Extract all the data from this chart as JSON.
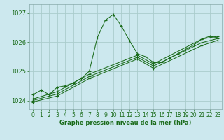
{
  "title": "Graphe pression niveau de la mer (hPa)",
  "bg_color": "#cce8ee",
  "grid_color": "#aacccc",
  "line_color": "#1a6b1a",
  "xlim": [
    -0.5,
    23.5
  ],
  "ylim": [
    1023.7,
    1027.3
  ],
  "yticks": [
    1024,
    1025,
    1026,
    1027
  ],
  "xticks": [
    0,
    1,
    2,
    3,
    4,
    5,
    6,
    7,
    8,
    9,
    10,
    11,
    12,
    13,
    14,
    15,
    16,
    17,
    18,
    19,
    20,
    21,
    22,
    23
  ],
  "series1": [
    1024.2,
    1024.35,
    1024.2,
    1024.45,
    1024.5,
    1024.6,
    1024.75,
    1025.0,
    1026.15,
    1026.75,
    1026.95,
    1026.55,
    1026.05,
    1025.6,
    1025.5,
    1025.3,
    1025.3,
    1025.45,
    1025.6,
    1025.75,
    1025.9,
    1026.1,
    1026.2,
    1026.15
  ],
  "series2_x": [
    0,
    3,
    7,
    13,
    15,
    21,
    23
  ],
  "series2_y": [
    1024.05,
    1024.3,
    1024.9,
    1025.55,
    1025.25,
    1026.1,
    1026.2
  ],
  "series3_x": [
    0,
    3,
    7,
    13,
    15,
    21,
    23
  ],
  "series3_y": [
    1024.0,
    1024.22,
    1024.82,
    1025.48,
    1025.18,
    1025.98,
    1026.12
  ],
  "series4_x": [
    0,
    3,
    7,
    13,
    15,
    21,
    23
  ],
  "series4_y": [
    1023.95,
    1024.15,
    1024.75,
    1025.42,
    1025.1,
    1025.88,
    1026.06
  ],
  "xlabel_fontsize": 6.0,
  "tick_fontsize": 5.5
}
